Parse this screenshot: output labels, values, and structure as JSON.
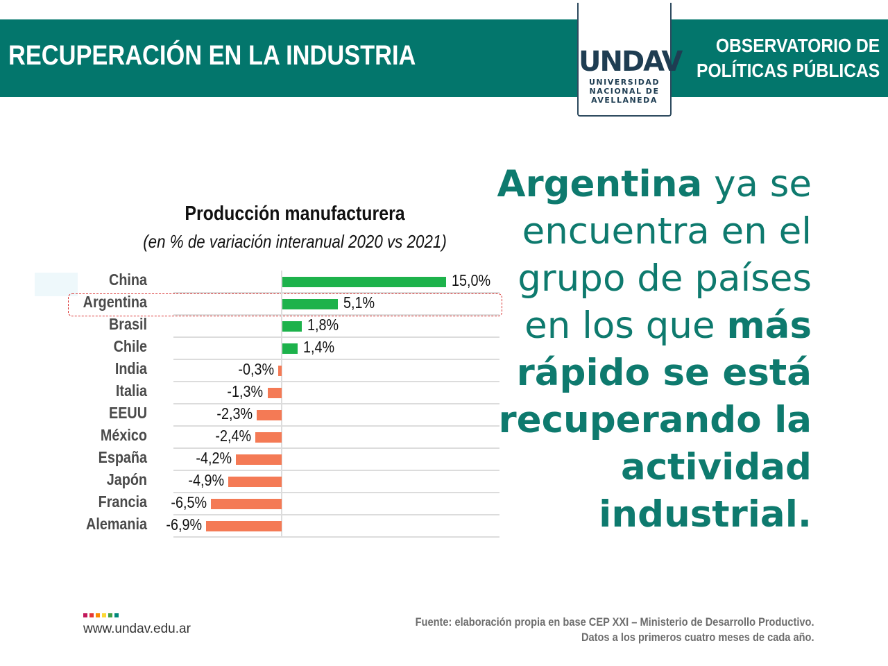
{
  "header": {
    "title": "RECUPERACIÓN EN LA INDUSTRIA",
    "observatorio_line1": "OBSERVATORIO DE",
    "observatorio_line2": "POLÍTICAS PÚBLICAS"
  },
  "logo": {
    "wordmark": "UNDAV",
    "line1": "UNIVERSIDAD",
    "line2": "NACIONAL DE",
    "line3": "AVELLANEDA",
    "color": "#1e3d52"
  },
  "chart_data": {
    "type": "bar",
    "orientation": "horizontal",
    "title": "Producción manufacturera",
    "subtitle": "(en % de variación interanual 2020 vs 2021)",
    "categories": [
      "China",
      "Argentina",
      "Brasil",
      "Chile",
      "India",
      "Italia",
      "EEUU",
      "México",
      "España",
      "Japón",
      "Francia",
      "Alemania"
    ],
    "values": [
      15.0,
      5.1,
      1.8,
      1.4,
      -0.3,
      -1.3,
      -2.3,
      -2.4,
      -4.2,
      -4.9,
      -6.5,
      -6.9
    ],
    "value_labels": [
      "15,0%",
      "5,1%",
      "1,8%",
      "1,4%",
      "-0,3%",
      "-1,3%",
      "-2,3%",
      "-2,4%",
      "-4,2%",
      "-4,9%",
      "-6,5%",
      "-6,9%"
    ],
    "highlighted_category": "Argentina",
    "positive_color": "#1db24b",
    "negative_color": "#f47a55",
    "xlim": [
      -10,
      20
    ],
    "grid": true
  },
  "headline": {
    "part1_bold": "Argentina",
    "part2": " ya se encuentra en el grupo de países en los que ",
    "part3_bold": "más rápido se está recuperando la actividad industrial."
  },
  "footer": {
    "url": "www.undav.edu.ar",
    "dot_colors": [
      "#c2185b",
      "#e53935",
      "#fb8c00",
      "#fdd835",
      "#43a047",
      "#00897b"
    ],
    "source_line1": "Fuente: elaboración propia en base CEP XXI – Ministerio de Desarrollo Productivo.",
    "source_line2": "Datos a los primeros cuatro meses de cada año."
  },
  "colors": {
    "banner": "#03766c",
    "headline": "#0e7a6e"
  }
}
